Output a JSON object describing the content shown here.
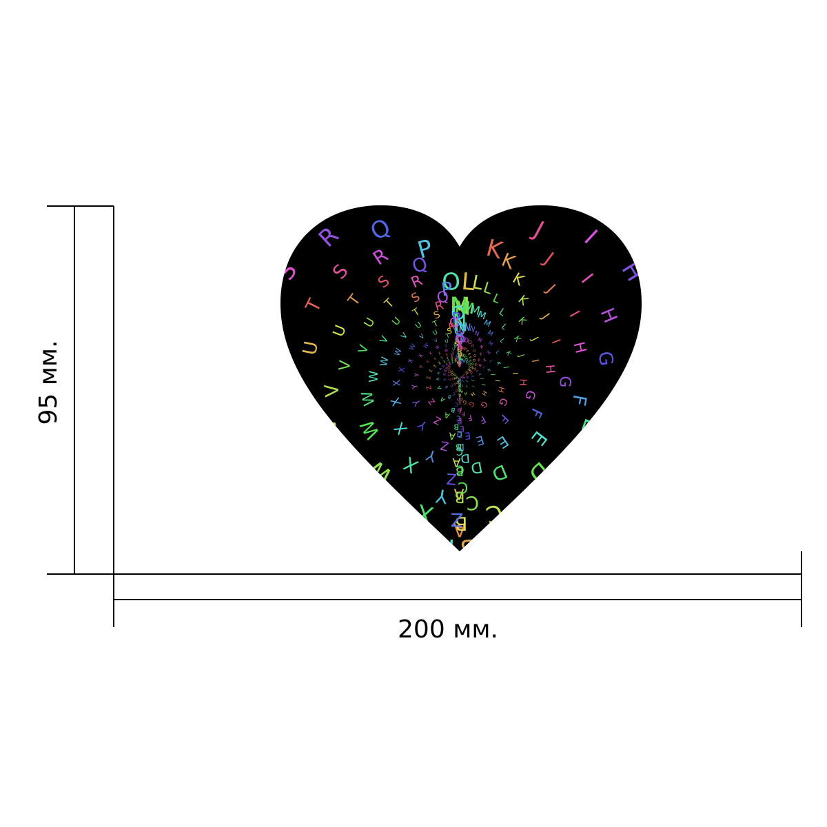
{
  "heart": {
    "alphabet": "ABCDEFGHIJKLMNOPQRSTUVWXYZ"
  },
  "dimensions": {
    "height": "95 мм.",
    "width": "200 мм."
  }
}
